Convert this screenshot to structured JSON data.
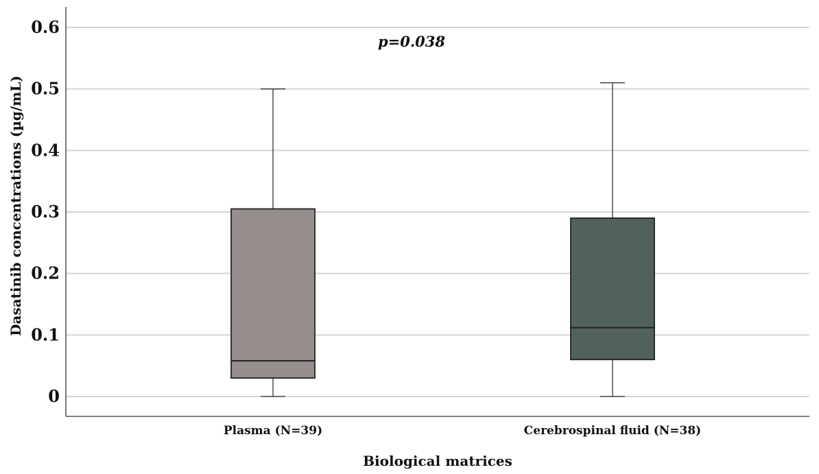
{
  "chart_data": {
    "type": "boxplot",
    "xlabel": "Biological matrices",
    "ylabel": "Dasatinib concentrations (µg/mL)",
    "ylim": [
      0,
      0.6
    ],
    "yticks": [
      {
        "value": 0,
        "label": "0"
      },
      {
        "value": 0.1,
        "label": "0.1"
      },
      {
        "value": 0.2,
        "label": "0.2"
      },
      {
        "value": 0.3,
        "label": "0.3"
      },
      {
        "value": 0.4,
        "label": "0.4"
      },
      {
        "value": 0.5,
        "label": "0.5"
      },
      {
        "value": 0.6,
        "label": "0.6"
      }
    ],
    "grid": true,
    "annotation": "p=0.038",
    "categories": [
      "Plasma (N=39)",
      "Cerebrospinal fluid (N=38)"
    ],
    "boxes": [
      {
        "category": "Plasma (N=39)",
        "min": 0,
        "q1": 0.03,
        "median": 0.058,
        "q3": 0.305,
        "max": 0.5,
        "color": "#958e8d"
      },
      {
        "category": "Cerebrospinal fluid (N=38)",
        "min": 0,
        "q1": 0.06,
        "median": 0.112,
        "q3": 0.29,
        "max": 0.51,
        "color": "#50625a"
      }
    ]
  }
}
